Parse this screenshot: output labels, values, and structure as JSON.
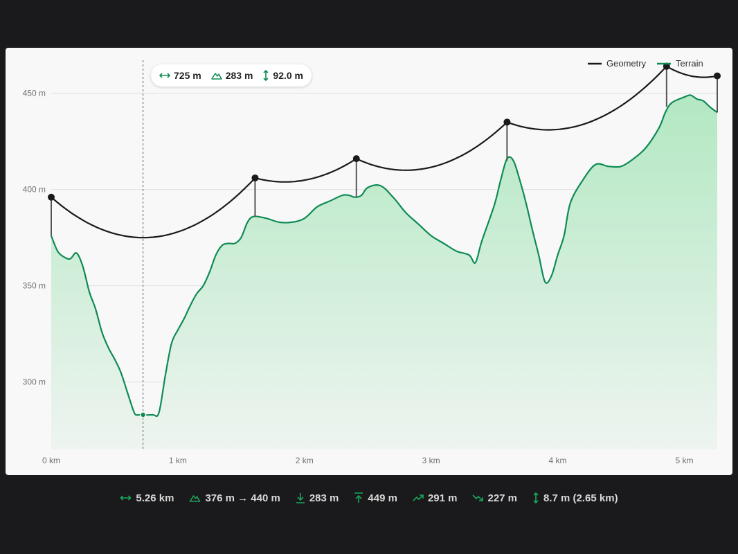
{
  "colors": {
    "geometry": "#1a1a1a",
    "terrain": "#0f8a55",
    "fill_top": "#b2e8c2",
    "fill_bottom": "#eef4f0",
    "icon": "#19a85a"
  },
  "chart_data": {
    "type": "line",
    "x_unit": "km",
    "y_unit": "m",
    "xlim": [
      0,
      5.26
    ],
    "ylim": [
      265,
      470
    ],
    "x_ticks": [
      0,
      1,
      2,
      3,
      4,
      5
    ],
    "x_tick_labels": [
      "0 km",
      "1 km",
      "2 km",
      "3 km",
      "4 km",
      "5 km"
    ],
    "y_ticks": [
      300,
      350,
      400,
      450
    ],
    "y_tick_labels": [
      "300 m",
      "350 m",
      "400 m",
      "450 m"
    ],
    "grid": true,
    "legend_position": "top-right",
    "legend": [
      "Geometry",
      "Terrain"
    ],
    "series": [
      {
        "name": "Terrain",
        "type": "area",
        "points": [
          [
            0,
            376
          ],
          [
            0.05,
            368
          ],
          [
            0.1,
            365
          ],
          [
            0.15,
            364
          ],
          [
            0.2,
            367
          ],
          [
            0.25,
            360
          ],
          [
            0.3,
            347
          ],
          [
            0.35,
            338
          ],
          [
            0.4,
            326
          ],
          [
            0.45,
            318
          ],
          [
            0.5,
            312
          ],
          [
            0.55,
            305
          ],
          [
            0.6,
            295
          ],
          [
            0.65,
            285
          ],
          [
            0.67,
            283
          ],
          [
            0.7,
            283
          ],
          [
            0.8,
            283
          ],
          [
            0.85,
            284
          ],
          [
            0.9,
            303
          ],
          [
            0.95,
            320
          ],
          [
            1.0,
            327
          ],
          [
            1.05,
            333
          ],
          [
            1.1,
            340
          ],
          [
            1.15,
            346
          ],
          [
            1.2,
            350
          ],
          [
            1.25,
            357
          ],
          [
            1.3,
            366
          ],
          [
            1.35,
            371
          ],
          [
            1.4,
            372
          ],
          [
            1.45,
            372
          ],
          [
            1.5,
            375
          ],
          [
            1.55,
            383
          ],
          [
            1.6,
            386
          ],
          [
            1.7,
            385
          ],
          [
            1.8,
            383
          ],
          [
            1.9,
            383
          ],
          [
            2.0,
            385
          ],
          [
            2.1,
            391
          ],
          [
            2.2,
            394
          ],
          [
            2.3,
            397
          ],
          [
            2.35,
            397
          ],
          [
            2.4,
            396
          ],
          [
            2.45,
            397
          ],
          [
            2.5,
            401
          ],
          [
            2.6,
            402
          ],
          [
            2.7,
            396
          ],
          [
            2.8,
            388
          ],
          [
            2.9,
            382
          ],
          [
            3.0,
            376
          ],
          [
            3.1,
            372
          ],
          [
            3.2,
            368
          ],
          [
            3.3,
            366
          ],
          [
            3.35,
            362
          ],
          [
            3.4,
            373
          ],
          [
            3.5,
            392
          ],
          [
            3.55,
            405
          ],
          [
            3.6,
            416
          ],
          [
            3.65,
            415
          ],
          [
            3.7,
            405
          ],
          [
            3.75,
            393
          ],
          [
            3.8,
            379
          ],
          [
            3.85,
            366
          ],
          [
            3.9,
            352
          ],
          [
            3.95,
            355
          ],
          [
            4.0,
            366
          ],
          [
            4.05,
            376
          ],
          [
            4.1,
            393
          ],
          [
            4.2,
            405
          ],
          [
            4.3,
            413
          ],
          [
            4.4,
            412
          ],
          [
            4.5,
            412
          ],
          [
            4.6,
            416
          ],
          [
            4.7,
            422
          ],
          [
            4.8,
            432
          ],
          [
            4.85,
            440
          ],
          [
            4.9,
            445
          ],
          [
            5.0,
            448
          ],
          [
            5.05,
            449
          ],
          [
            5.1,
            447
          ],
          [
            5.15,
            446
          ],
          [
            5.2,
            443
          ],
          [
            5.26,
            440
          ]
        ]
      },
      {
        "name": "Geometry",
        "type": "line",
        "vertices": [
          [
            0,
            396
          ],
          [
            1.61,
            406
          ],
          [
            2.41,
            416
          ],
          [
            3.6,
            435
          ],
          [
            4.86,
            464
          ],
          [
            5.26,
            459
          ]
        ],
        "sag": [
          [
            0.72,
            375
          ],
          [
            1.8,
            404
          ],
          [
            2.8,
            410
          ],
          [
            3.95,
            431
          ],
          [
            5.05,
            459
          ]
        ]
      }
    ],
    "vertex_ground": [
      376,
      386,
      396,
      415,
      443,
      440
    ],
    "cursor": {
      "x": 0.725,
      "y": 283
    }
  },
  "tooltip": {
    "distance": "725 m",
    "elevation": "283 m",
    "clearance": "92.0 m"
  },
  "stats": {
    "distance": "5.26 km",
    "elevation_range": "376 m → 440 m",
    "min": "283 m",
    "max": "449 m",
    "ascent": "291 m",
    "descent": "227 m",
    "clearance": "8.7 m (2.65 km)"
  }
}
